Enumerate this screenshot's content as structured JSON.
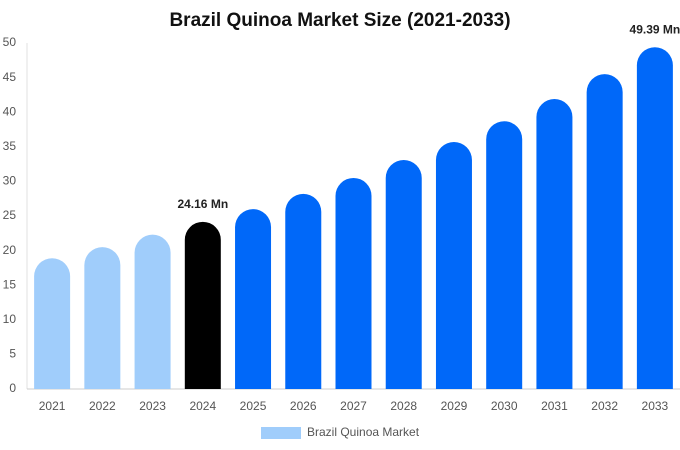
{
  "chart_data": {
    "type": "bar",
    "title": "Brazil Quinoa Market Size (2021-2033)",
    "categories": [
      "2021",
      "2022",
      "2023",
      "2024",
      "2025",
      "2026",
      "2027",
      "2028",
      "2029",
      "2030",
      "2031",
      "2032",
      "2033"
    ],
    "series": [
      {
        "name": "Brazil Quinoa Market",
        "color": "#a0cdfb",
        "colors": [
          "#a0cdfb",
          "#a0cdfb",
          "#a0cdfb",
          "#000000",
          "#0068f9",
          "#0068f9",
          "#0068f9",
          "#0068f9",
          "#0068f9",
          "#0068f9",
          "#0068f9",
          "#0068f9",
          "#0068f9"
        ],
        "values": [
          18.9,
          20.5,
          22.3,
          24.16,
          26.0,
          28.2,
          30.5,
          33.1,
          35.7,
          38.7,
          41.9,
          45.5,
          49.39
        ],
        "value_labels": [
          null,
          null,
          null,
          "24.16 Mn",
          null,
          null,
          null,
          null,
          null,
          null,
          null,
          null,
          "49.39 Mn"
        ]
      }
    ],
    "ylim": [
      0,
      50
    ],
    "yticks": [
      0,
      5,
      10,
      15,
      20,
      25,
      30,
      35,
      40,
      45,
      50
    ],
    "grid": false,
    "legend": "bottom"
  }
}
